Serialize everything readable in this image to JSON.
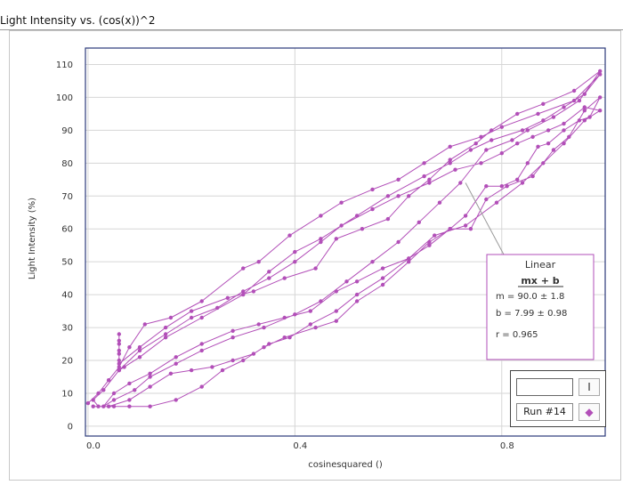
{
  "window_title": "Light Intensity vs. (cos(x))^2",
  "colors": {
    "series": "#b24fb8",
    "grid": "#d6d6d6",
    "plot_border": "#2b3a7a"
  },
  "legend": {
    "run_label": "Run #14",
    "cursor_glyph": "I",
    "marker_glyph": "◆"
  },
  "chart_data": {
    "type": "scatter",
    "xlabel": "cosinesquared ()",
    "ylabel": "Light Intensity (%)",
    "xlim": [
      -0.005,
      1.0
    ],
    "ylim": [
      -3,
      115
    ],
    "x_ticks": [
      0.0,
      0.4,
      0.8
    ],
    "x_tick_labels": [
      "0.0",
      "0.4",
      "0.8"
    ],
    "y_ticks": [
      0,
      10,
      20,
      30,
      40,
      50,
      60,
      70,
      80,
      90,
      100,
      110
    ],
    "y_tick_labels": [
      "0",
      "10",
      "20",
      "30",
      "40",
      "50",
      "60",
      "70",
      "80",
      "90",
      "100",
      "110"
    ],
    "grid": true,
    "series": [
      {
        "name": "Run #14",
        "connected": true,
        "points": [
          [
            0.0,
            7
          ],
          [
            0.02,
            10
          ],
          [
            0.04,
            14
          ],
          [
            0.06,
            18
          ],
          [
            0.08,
            24
          ],
          [
            0.11,
            31
          ],
          [
            0.16,
            33
          ],
          [
            0.22,
            38
          ],
          [
            0.3,
            48
          ],
          [
            0.33,
            50
          ],
          [
            0.39,
            58
          ],
          [
            0.45,
            64
          ],
          [
            0.49,
            68
          ],
          [
            0.55,
            72
          ],
          [
            0.6,
            75
          ],
          [
            0.65,
            80
          ],
          [
            0.7,
            85
          ],
          [
            0.76,
            88
          ],
          [
            0.8,
            91
          ],
          [
            0.87,
            95
          ],
          [
            0.94,
            99
          ],
          [
            0.99,
            107
          ],
          [
            0.96,
            101
          ],
          [
            0.92,
            97
          ],
          [
            0.88,
            93
          ],
          [
            0.84,
            90
          ],
          [
            0.78,
            87
          ],
          [
            0.74,
            84
          ],
          [
            0.7,
            80
          ],
          [
            0.65,
            76
          ],
          [
            0.58,
            70
          ],
          [
            0.52,
            64
          ],
          [
            0.45,
            57
          ],
          [
            0.4,
            53
          ],
          [
            0.35,
            47
          ],
          [
            0.3,
            40
          ],
          [
            0.22,
            33
          ],
          [
            0.15,
            27
          ],
          [
            0.1,
            21
          ],
          [
            0.07,
            18
          ],
          [
            0.06,
            17
          ],
          [
            0.06,
            20
          ],
          [
            0.06,
            23
          ],
          [
            0.06,
            26
          ],
          [
            0.06,
            28
          ],
          [
            0.06,
            25
          ],
          [
            0.06,
            22
          ],
          [
            0.06,
            19
          ],
          [
            0.1,
            24
          ],
          [
            0.15,
            30
          ],
          [
            0.2,
            35
          ],
          [
            0.27,
            39
          ],
          [
            0.32,
            41
          ],
          [
            0.38,
            45
          ],
          [
            0.44,
            48
          ],
          [
            0.48,
            57
          ],
          [
            0.53,
            60
          ],
          [
            0.58,
            63
          ],
          [
            0.62,
            70
          ],
          [
            0.66,
            75
          ],
          [
            0.7,
            81
          ],
          [
            0.75,
            86
          ],
          [
            0.78,
            90
          ],
          [
            0.83,
            95
          ],
          [
            0.88,
            98
          ],
          [
            0.94,
            102
          ],
          [
            0.99,
            108
          ],
          [
            0.95,
            99
          ],
          [
            0.9,
            94
          ],
          [
            0.85,
            90
          ],
          [
            0.82,
            87
          ],
          [
            0.77,
            84
          ],
          [
            0.72,
            74
          ],
          [
            0.68,
            68
          ],
          [
            0.64,
            62
          ],
          [
            0.6,
            56
          ],
          [
            0.55,
            50
          ],
          [
            0.5,
            44
          ],
          [
            0.45,
            38
          ],
          [
            0.4,
            34
          ],
          [
            0.34,
            30
          ],
          [
            0.28,
            27
          ],
          [
            0.22,
            23
          ],
          [
            0.17,
            19
          ],
          [
            0.12,
            15
          ],
          [
            0.09,
            11
          ],
          [
            0.05,
            8
          ],
          [
            0.03,
            6
          ],
          [
            0.05,
            10
          ],
          [
            0.08,
            13
          ],
          [
            0.12,
            16
          ],
          [
            0.17,
            21
          ],
          [
            0.22,
            25
          ],
          [
            0.28,
            29
          ],
          [
            0.33,
            31
          ],
          [
            0.38,
            33
          ],
          [
            0.43,
            35
          ],
          [
            0.48,
            41
          ],
          [
            0.52,
            44
          ],
          [
            0.57,
            48
          ],
          [
            0.62,
            51
          ],
          [
            0.67,
            58
          ],
          [
            0.73,
            61
          ],
          [
            0.79,
            68
          ],
          [
            0.84,
            74
          ],
          [
            0.88,
            80
          ],
          [
            0.92,
            86
          ],
          [
            0.96,
            93
          ],
          [
            0.99,
            96
          ],
          [
            0.96,
            97
          ],
          [
            0.92,
            92
          ],
          [
            0.89,
            90
          ],
          [
            0.86,
            88
          ],
          [
            0.83,
            86
          ],
          [
            0.8,
            83
          ],
          [
            0.76,
            80
          ],
          [
            0.71,
            78
          ],
          [
            0.66,
            74
          ],
          [
            0.6,
            70
          ],
          [
            0.55,
            66
          ],
          [
            0.49,
            61
          ],
          [
            0.45,
            56
          ],
          [
            0.4,
            50
          ],
          [
            0.35,
            45
          ],
          [
            0.3,
            41
          ],
          [
            0.25,
            36
          ],
          [
            0.2,
            33
          ],
          [
            0.15,
            28
          ],
          [
            0.1,
            23
          ],
          [
            0.06,
            17
          ],
          [
            0.03,
            11
          ],
          [
            0.01,
            8
          ],
          [
            0.02,
            6
          ],
          [
            0.05,
            6
          ],
          [
            0.08,
            6
          ],
          [
            0.12,
            6
          ],
          [
            0.17,
            8
          ],
          [
            0.22,
            12
          ],
          [
            0.26,
            17
          ],
          [
            0.3,
            20
          ],
          [
            0.34,
            24
          ],
          [
            0.38,
            27
          ],
          [
            0.44,
            30
          ],
          [
            0.48,
            32
          ],
          [
            0.52,
            38
          ],
          [
            0.57,
            43
          ],
          [
            0.62,
            50
          ],
          [
            0.66,
            56
          ],
          [
            0.7,
            60
          ],
          [
            0.74,
            60
          ],
          [
            0.77,
            69
          ],
          [
            0.81,
            73
          ],
          [
            0.86,
            76
          ],
          [
            0.9,
            84
          ],
          [
            0.93,
            88
          ],
          [
            0.96,
            96
          ],
          [
            0.99,
            100
          ],
          [
            0.97,
            94
          ],
          [
            0.95,
            93
          ],
          [
            0.92,
            90
          ],
          [
            0.89,
            86
          ],
          [
            0.87,
            85
          ],
          [
            0.85,
            80
          ],
          [
            0.83,
            75
          ],
          [
            0.8,
            73
          ],
          [
            0.77,
            73
          ],
          [
            0.73,
            64
          ],
          [
            0.7,
            60
          ],
          [
            0.66,
            55
          ],
          [
            0.62,
            51
          ],
          [
            0.57,
            45
          ],
          [
            0.52,
            40
          ],
          [
            0.48,
            35
          ],
          [
            0.43,
            31
          ],
          [
            0.39,
            27
          ],
          [
            0.35,
            25
          ],
          [
            0.32,
            22
          ],
          [
            0.28,
            20
          ],
          [
            0.24,
            18
          ],
          [
            0.2,
            17
          ],
          [
            0.16,
            16
          ],
          [
            0.12,
            12
          ],
          [
            0.08,
            8
          ],
          [
            0.04,
            6
          ],
          [
            0.01,
            6
          ]
        ]
      }
    ],
    "annotation": {
      "title": "Linear",
      "equation": "mx + b",
      "m": "m = 90.0 ± 1.8",
      "b": "b  = 7.99 ± 0.98",
      "r": "r = 0.965",
      "anchor": [
        0.73,
        74
      ]
    }
  }
}
